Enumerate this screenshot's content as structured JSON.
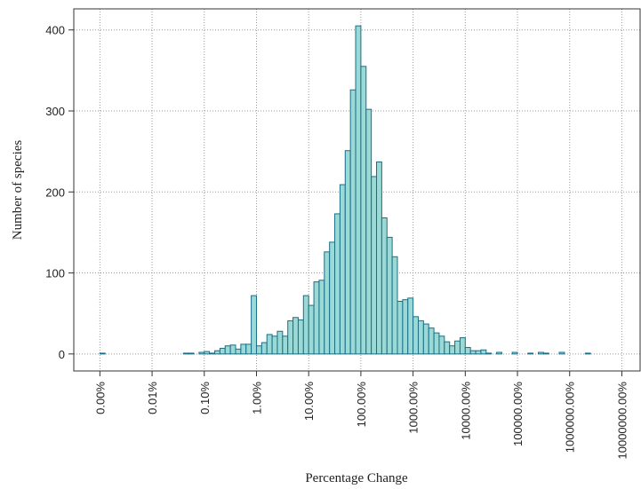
{
  "chart_data": {
    "type": "histogram",
    "x_label": "Percentage Change",
    "y_label": "Number of species",
    "bins": [
      -3,
      -2.9,
      -2.8,
      -2.7,
      -2.6,
      -2.5,
      -2.4,
      -2.3,
      -2.2,
      -2.1,
      -2,
      -1.9,
      -1.8,
      -1.7,
      -1.6,
      -1.5,
      -1.4,
      -1.3,
      -1.2,
      -1.1,
      -1,
      -0.9,
      -0.8,
      -0.7,
      -0.6,
      -0.5,
      -0.4,
      -0.3,
      -0.2,
      -0.1,
      0,
      0.1,
      0.2,
      0.3,
      0.4,
      0.5,
      0.6,
      0.7,
      0.8,
      0.9,
      1,
      1.1,
      1.2,
      1.3,
      1.4,
      1.5,
      1.6,
      1.7,
      1.8,
      1.9,
      2,
      2.1,
      2.2,
      2.3,
      2.4,
      2.5,
      2.6,
      2.7,
      2.8,
      2.9,
      3,
      3.1,
      3.2,
      3.3,
      3.4,
      3.5,
      3.6,
      3.7,
      3.8,
      3.9,
      4,
      4.1,
      4.2,
      4.3,
      4.4,
      4.5,
      4.6,
      4.7,
      4.8,
      4.9,
      5,
      5.1,
      5.2,
      5.3,
      5.4,
      5.5,
      5.6,
      5.7,
      5.8,
      5.9,
      6,
      6.1,
      6.2,
      6.3,
      6.4,
      6.5,
      6.6,
      6.7,
      6.8,
      6.9,
      7
    ],
    "values": [
      1,
      0,
      0,
      0,
      0,
      0,
      0,
      0,
      0,
      0,
      0,
      0,
      0,
      0,
      0,
      0,
      1,
      1,
      0,
      2,
      3,
      1,
      4,
      7,
      10,
      11,
      6,
      12,
      12,
      72,
      10,
      14,
      24,
      22,
      28,
      22,
      41,
      45,
      42,
      72,
      60,
      89,
      91,
      126,
      138,
      173,
      209,
      251,
      326,
      405,
      355,
      302,
      219,
      237,
      168,
      144,
      120,
      65,
      67,
      69,
      46,
      41,
      37,
      32,
      26,
      22,
      15,
      10,
      16,
      20,
      8,
      4,
      4,
      5,
      1,
      0,
      2,
      0,
      0,
      2,
      0,
      0,
      1,
      0,
      2,
      1,
      0,
      0,
      2,
      0,
      0,
      0,
      0,
      1,
      0,
      0,
      0,
      0,
      0,
      0
    ],
    "fill_color": "#9ad9d5",
    "edge_color": "#1b6f86",
    "xlim": [
      -3.5,
      7.35
    ],
    "xticks": [
      {
        "value": -3,
        "label": "0.00%"
      },
      {
        "value": -2,
        "label": "0.01%"
      },
      {
        "value": -1,
        "label": "0.10%"
      },
      {
        "value": 0,
        "label": "1.00%"
      },
      {
        "value": 1,
        "label": "10.00%"
      },
      {
        "value": 2,
        "label": "100.00%"
      },
      {
        "value": 3,
        "label": "1000.00%"
      },
      {
        "value": 4,
        "label": "10000.00%"
      },
      {
        "value": 5,
        "label": "100000.00%"
      },
      {
        "value": 6,
        "label": "1000000.00%"
      },
      {
        "value": 7,
        "label": "10000000.00%"
      }
    ],
    "ylim": [
      -21,
      426
    ],
    "yticks": [
      0,
      100,
      200,
      300,
      400
    ],
    "grid": true
  }
}
